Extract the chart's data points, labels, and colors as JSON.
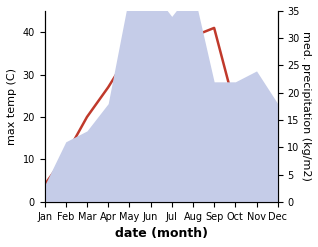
{
  "months": [
    "Jan",
    "Feb",
    "Mar",
    "Apr",
    "May",
    "Jun",
    "Jul",
    "Aug",
    "Sep",
    "Oct",
    "Nov",
    "Dec"
  ],
  "temp": [
    4,
    11,
    20,
    27,
    35,
    34,
    35,
    39,
    41,
    22,
    18,
    13
  ],
  "precip_mm": [
    3,
    11,
    13,
    18,
    38,
    39,
    34,
    39,
    22,
    22,
    24,
    18
  ],
  "temp_color": "#c0392b",
  "precip_fill": "#c5cce8",
  "temp_ylim": [
    0,
    45
  ],
  "precip_ylim": [
    0,
    35
  ],
  "temp_yticks": [
    0,
    10,
    20,
    30,
    40
  ],
  "precip_yticks": [
    0,
    5,
    10,
    15,
    20,
    25,
    30,
    35
  ],
  "ylabel_left": "max temp (C)",
  "ylabel_right": "med. precipitation (kg/m2)",
  "xlabel": "date (month)",
  "xlabel_fontsize": 9,
  "ylabel_fontsize": 8,
  "tick_fontsize": 7
}
